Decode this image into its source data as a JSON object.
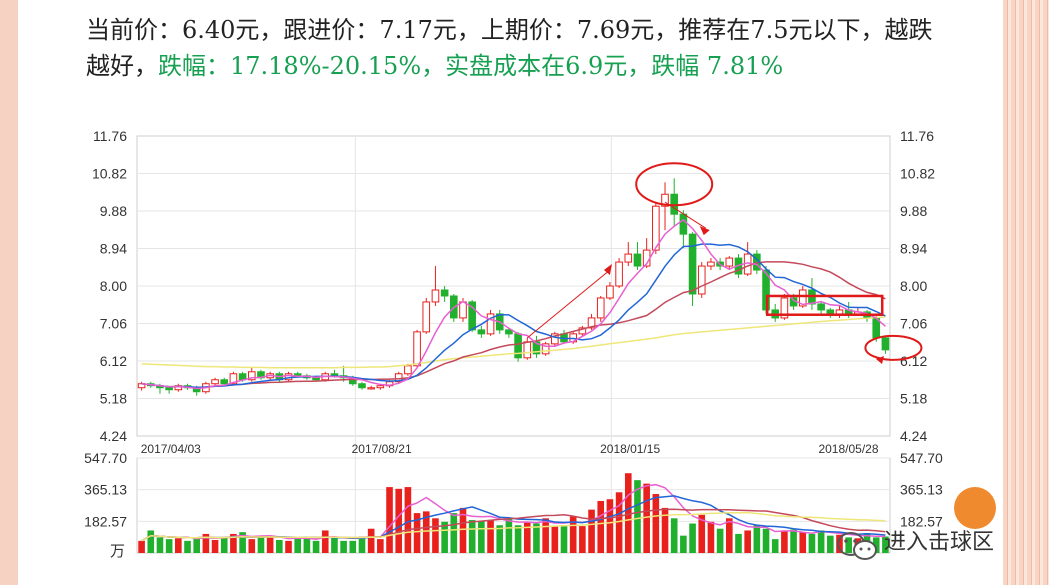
{
  "headline": {
    "part1": "当前价：6.40元，跟进价：7.17元，上期价：7.69元，推荐在7.5元以下，越跌越好，",
    "part2": "跌幅：17.18%-20.15%，实盘成本在6.9元，跌幅 7.81%"
  },
  "watermark": {
    "text": "进入击球区",
    "icon": "wechat-icon"
  },
  "chart_data": {
    "type": "candlestick",
    "price_axis": {
      "ticks": [
        "11.76",
        "10.82",
        "9.88",
        "8.94",
        "8.00",
        "7.06",
        "6.12",
        "5.18",
        "4.24"
      ],
      "ylim": [
        4.24,
        11.76
      ]
    },
    "volume_axis": {
      "ticks": [
        "547.70",
        "365.13",
        "182.57"
      ],
      "unit_label": "万",
      "ylim": [
        0,
        547.7
      ]
    },
    "date_labels": [
      "2017/04/03",
      "2017/08/21",
      "2018/01/15",
      "2018/05/28"
    ],
    "colors": {
      "up": "#e8211d",
      "down": "#21b02e",
      "ma5": "#e85fd2",
      "ma10": "#2166d8",
      "ma20": "#c4495a",
      "ma60": "#efe67a"
    },
    "candles": [
      [
        5.45,
        5.55,
        5.38,
        5.6
      ],
      [
        5.55,
        5.5,
        5.45,
        5.6
      ],
      [
        5.5,
        5.45,
        5.3,
        5.55
      ],
      [
        5.45,
        5.4,
        5.3,
        5.5
      ],
      [
        5.4,
        5.5,
        5.35,
        5.55
      ],
      [
        5.5,
        5.45,
        5.4,
        5.55
      ],
      [
        5.45,
        5.35,
        5.25,
        5.5
      ],
      [
        5.35,
        5.55,
        5.3,
        5.6
      ],
      [
        5.55,
        5.65,
        5.5,
        5.7
      ],
      [
        5.65,
        5.55,
        5.5,
        5.7
      ],
      [
        5.55,
        5.8,
        5.5,
        5.85
      ],
      [
        5.8,
        5.65,
        5.6,
        5.85
      ],
      [
        5.65,
        5.85,
        5.6,
        5.95
      ],
      [
        5.85,
        5.7,
        5.65,
        5.9
      ],
      [
        5.7,
        5.8,
        5.65,
        5.85
      ],
      [
        5.8,
        5.65,
        5.6,
        5.85
      ],
      [
        5.65,
        5.8,
        5.6,
        5.85
      ],
      [
        5.8,
        5.75,
        5.7,
        5.85
      ],
      [
        5.75,
        5.7,
        5.65,
        5.8
      ],
      [
        5.7,
        5.65,
        5.6,
        5.75
      ],
      [
        5.65,
        5.8,
        5.6,
        5.85
      ],
      [
        5.8,
        5.75,
        5.7,
        5.9
      ],
      [
        5.75,
        5.7,
        5.6,
        6.0
      ],
      [
        5.7,
        5.55,
        5.5,
        5.75
      ],
      [
        5.55,
        5.45,
        5.4,
        5.6
      ],
      [
        5.45,
        5.45,
        5.4,
        5.5
      ],
      [
        5.45,
        5.5,
        5.4,
        5.55
      ],
      [
        5.5,
        5.6,
        5.45,
        5.65
      ],
      [
        5.6,
        5.8,
        5.55,
        5.85
      ],
      [
        5.8,
        6.0,
        5.75,
        6.05
      ],
      [
        6.0,
        6.85,
        5.95,
        6.9
      ],
      [
        6.85,
        7.6,
        6.8,
        7.7
      ],
      [
        7.6,
        7.9,
        7.5,
        8.5
      ],
      [
        7.9,
        7.75,
        7.6,
        8.0
      ],
      [
        7.75,
        7.2,
        7.1,
        7.8
      ],
      [
        7.2,
        7.6,
        7.1,
        7.7
      ],
      [
        7.6,
        6.9,
        6.85,
        7.65
      ],
      [
        6.9,
        6.8,
        6.7,
        7.0
      ],
      [
        6.8,
        7.3,
        6.75,
        7.4
      ],
      [
        7.3,
        6.9,
        6.8,
        7.4
      ],
      [
        6.9,
        6.8,
        6.7,
        6.95
      ],
      [
        6.8,
        6.2,
        6.1,
        6.85
      ],
      [
        6.2,
        6.6,
        6.15,
        6.7
      ],
      [
        6.6,
        6.3,
        6.2,
        6.75
      ],
      [
        6.3,
        6.55,
        6.25,
        6.6
      ],
      [
        6.55,
        6.8,
        6.5,
        6.85
      ],
      [
        6.8,
        6.6,
        6.55,
        6.9
      ],
      [
        6.6,
        6.8,
        6.55,
        6.85
      ],
      [
        6.8,
        6.95,
        6.75,
        7.0
      ],
      [
        6.95,
        7.2,
        6.9,
        7.3
      ],
      [
        7.2,
        7.7,
        7.1,
        7.75
      ],
      [
        7.7,
        8.0,
        7.65,
        8.1
      ],
      [
        8.0,
        8.6,
        7.95,
        8.7
      ],
      [
        8.6,
        8.8,
        8.5,
        9.1
      ],
      [
        8.8,
        8.5,
        8.4,
        9.1
      ],
      [
        8.5,
        8.9,
        8.45,
        9.2
      ],
      [
        8.9,
        10.0,
        8.8,
        10.1
      ],
      [
        10.0,
        10.3,
        9.4,
        10.6
      ],
      [
        10.3,
        9.8,
        9.5,
        10.7
      ],
      [
        9.8,
        9.3,
        8.95,
        9.9
      ],
      [
        9.3,
        7.8,
        7.5,
        9.35
      ],
      [
        7.8,
        8.5,
        7.7,
        8.6
      ],
      [
        8.5,
        8.6,
        8.4,
        8.7
      ],
      [
        8.6,
        8.5,
        8.4,
        8.7
      ],
      [
        8.5,
        8.7,
        8.4,
        8.75
      ],
      [
        8.7,
        8.3,
        8.2,
        8.8
      ],
      [
        8.3,
        8.8,
        8.25,
        9.1
      ],
      [
        8.8,
        8.4,
        8.3,
        8.9
      ],
      [
        8.4,
        7.4,
        7.3,
        8.5
      ],
      [
        7.4,
        7.2,
        7.1,
        7.55
      ],
      [
        7.2,
        7.7,
        7.15,
        7.8
      ],
      [
        7.7,
        7.5,
        7.4,
        7.8
      ],
      [
        7.5,
        7.9,
        7.45,
        8.0
      ],
      [
        7.9,
        7.55,
        7.4,
        8.2
      ],
      [
        7.55,
        7.4,
        7.3,
        7.6
      ],
      [
        7.4,
        7.3,
        7.2,
        7.45
      ],
      [
        7.3,
        7.4,
        7.2,
        7.5
      ],
      [
        7.4,
        7.3,
        7.2,
        7.6
      ],
      [
        7.3,
        7.35,
        7.25,
        7.45
      ],
      [
        7.35,
        7.2,
        7.1,
        7.4
      ],
      [
        7.2,
        6.7,
        6.6,
        7.25
      ],
      [
        6.7,
        6.4,
        6.3,
        6.75
      ]
    ],
    "volumes": [
      70,
      130,
      90,
      80,
      85,
      70,
      90,
      110,
      75,
      90,
      110,
      120,
      80,
      90,
      100,
      75,
      70,
      95,
      85,
      70,
      130,
      90,
      70,
      70,
      95,
      140,
      80,
      380,
      370,
      380,
      230,
      240,
      200,
      180,
      230,
      260,
      190,
      185,
      190,
      160,
      200,
      160,
      180,
      170,
      200,
      155,
      160,
      210,
      155,
      250,
      300,
      310,
      350,
      460,
      420,
      400,
      340,
      260,
      200,
      100,
      170,
      220,
      180,
      140,
      200,
      110,
      130,
      160,
      140,
      80,
      125,
      135,
      120,
      110,
      130,
      100,
      105,
      90,
      85,
      115,
      90,
      95
    ],
    "ma_series": {
      "ma60": [
        6.05,
        6.04,
        6.03,
        6.02,
        6.01,
        6.0,
        5.99,
        5.98,
        5.98,
        5.97,
        5.97,
        5.96,
        5.96,
        5.96,
        5.95,
        5.95,
        5.95,
        5.95,
        5.95,
        5.95,
        5.95,
        5.95,
        5.96,
        5.96,
        5.96,
        5.97,
        5.97,
        5.98,
        6.0,
        6.02,
        6.05,
        6.08,
        6.12,
        6.15,
        6.18,
        6.2,
        6.22,
        6.24,
        6.26,
        6.28,
        6.3,
        6.31,
        6.33,
        6.35,
        6.37,
        6.39,
        6.41,
        6.43,
        6.46,
        6.49,
        6.52,
        6.55,
        6.58,
        6.61,
        6.64,
        6.67,
        6.7,
        6.74,
        6.78,
        6.81,
        6.83,
        6.85,
        6.87,
        6.89,
        6.91,
        6.93,
        6.95,
        6.97,
        6.99,
        7.01,
        7.03,
        7.05,
        7.07,
        7.09,
        7.11,
        7.13,
        7.14,
        7.16,
        7.18,
        7.19,
        7.21,
        7.22
      ]
    },
    "annotations": {
      "red_ellipses": 2,
      "red_rect": 1,
      "red_arrows": 3
    }
  }
}
